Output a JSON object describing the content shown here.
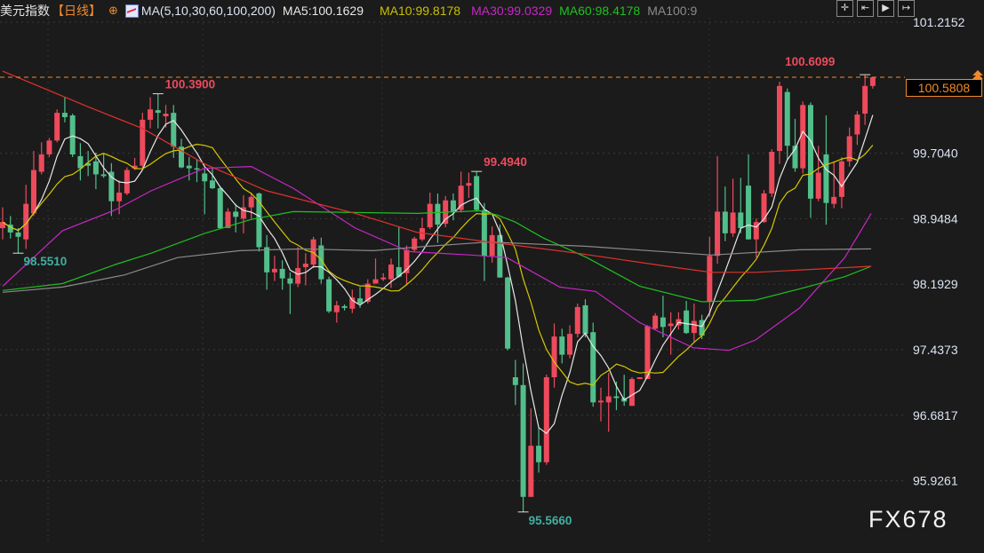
{
  "header": {
    "title": "美元指数",
    "period": "【日线】",
    "zoom_icon": "circle-plus-icon",
    "ma_icon": "line-chart-icon",
    "ma_params": "MA(5,10,30,60,100,200)",
    "ma5": "MA5:100.1629",
    "ma10": "MA10:99.8178",
    "ma30": "MA30:99.0329",
    "ma60": "MA60:98.4178",
    "ma100": "MA100:9"
  },
  "toolbar": [
    {
      "icon": "crosshair-icon",
      "glyph": "✛"
    },
    {
      "icon": "zoom-range-icon",
      "glyph": "⇤"
    },
    {
      "icon": "play-forward-icon",
      "glyph": "▶"
    },
    {
      "icon": "scroll-to-end-icon",
      "glyph": "↦"
    }
  ],
  "current_price": "100.5808",
  "watermark": "FX678",
  "colors": {
    "up": "#ee4a5c",
    "down": "#52bf8b",
    "ma5": "#e8e8e8",
    "ma10": "#d4c800",
    "ma30": "#c727c7",
    "ma60": "#20c020",
    "ma100": "#8a8a8a",
    "ma200": "#e0322c",
    "accent": "#f08a2c",
    "background": "#1b1b1b"
  },
  "chart_data": {
    "type": "candlestick",
    "title": "美元指数",
    "ylim": [
      95.4,
      101.3
    ],
    "yticks": [
      "101.2152",
      "99.7040",
      "98.9484",
      "98.1929",
      "97.4373",
      "96.6817",
      "95.9261"
    ],
    "grid": true,
    "annotations": [
      {
        "label": "100.3900",
        "candle": 21,
        "kind": "high"
      },
      {
        "label": "98.5510",
        "candle": 3,
        "kind": "low"
      },
      {
        "label": "99.4940",
        "candle": 62,
        "kind": "high"
      },
      {
        "label": "95.5660",
        "candle": 68,
        "kind": "low"
      },
      {
        "label": "100.6099",
        "candle": 112,
        "kind": "high"
      }
    ],
    "ohlc": [
      [
        98.84,
        99.08,
        98.71,
        98.91
      ],
      [
        98.88,
        98.98,
        98.72,
        98.79
      ],
      [
        98.79,
        98.84,
        98.551,
        98.74
      ],
      [
        98.71,
        99.34,
        98.6,
        99.12
      ],
      [
        99.01,
        99.73,
        98.98,
        99.51
      ],
      [
        99.49,
        99.83,
        99.46,
        99.69
      ],
      [
        99.69,
        99.88,
        99.66,
        99.85
      ],
      [
        99.85,
        100.21,
        99.83,
        100.17
      ],
      [
        100.17,
        100.35,
        100.06,
        100.12
      ],
      [
        100.14,
        100.16,
        99.66,
        99.69
      ],
      [
        99.67,
        99.82,
        99.39,
        99.53
      ],
      [
        99.59,
        99.73,
        99.44,
        99.56
      ],
      [
        99.61,
        99.71,
        99.29,
        99.46
      ],
      [
        99.46,
        99.7,
        99.42,
        99.44
      ],
      [
        99.49,
        99.59,
        98.98,
        99.15
      ],
      [
        99.15,
        99.39,
        99.0,
        99.25
      ],
      [
        99.24,
        99.54,
        99.22,
        99.51
      ],
      [
        99.53,
        99.65,
        99.51,
        99.56
      ],
      [
        99.56,
        100.17,
        99.53,
        100.09
      ],
      [
        100.09,
        100.35,
        99.99,
        100.21
      ],
      [
        100.2,
        100.39,
        99.99,
        100.17
      ],
      [
        100.13,
        100.26,
        100.0,
        100.16
      ],
      [
        100.17,
        100.26,
        99.65,
        99.78
      ],
      [
        99.78,
        99.87,
        99.53,
        99.54
      ],
      [
        99.56,
        99.66,
        99.39,
        99.53
      ],
      [
        99.53,
        99.63,
        99.37,
        99.52
      ],
      [
        99.47,
        99.54,
        99.0,
        99.38
      ],
      [
        99.39,
        99.54,
        99.29,
        99.3
      ],
      [
        99.3,
        99.32,
        98.83,
        98.84
      ],
      [
        98.84,
        99.07,
        98.84,
        99.03
      ],
      [
        99.03,
        99.12,
        98.79,
        98.97
      ],
      [
        98.95,
        99.22,
        98.78,
        99.08
      ],
      [
        99.08,
        99.25,
        98.95,
        99.2
      ],
      [
        99.24,
        99.25,
        98.57,
        98.62
      ],
      [
        98.62,
        98.76,
        98.13,
        98.33
      ],
      [
        98.33,
        98.52,
        98.23,
        98.37
      ],
      [
        98.37,
        98.47,
        98.13,
        98.26
      ],
      [
        98.26,
        98.33,
        97.85,
        98.2
      ],
      [
        98.2,
        98.62,
        98.16,
        98.38
      ],
      [
        98.39,
        98.55,
        98.18,
        98.43
      ],
      [
        98.42,
        98.74,
        98.38,
        98.71
      ],
      [
        98.64,
        98.73,
        98.2,
        98.25
      ],
      [
        98.25,
        98.28,
        97.86,
        97.88
      ],
      [
        97.87,
        98.0,
        97.75,
        97.95
      ],
      [
        97.94,
        97.96,
        97.89,
        97.92
      ],
      [
        97.91,
        98.13,
        97.86,
        98.04
      ],
      [
        98.03,
        98.16,
        97.92,
        97.97
      ],
      [
        97.99,
        98.25,
        97.97,
        98.2
      ],
      [
        98.2,
        98.49,
        98.2,
        98.25
      ],
      [
        98.25,
        98.32,
        98.23,
        98.27
      ],
      [
        98.25,
        98.49,
        98.15,
        98.42
      ],
      [
        98.39,
        98.85,
        98.27,
        98.28
      ],
      [
        98.32,
        98.64,
        98.18,
        98.59
      ],
      [
        98.59,
        98.74,
        98.57,
        98.72
      ],
      [
        98.71,
        98.96,
        98.69,
        98.84
      ],
      [
        98.85,
        99.25,
        98.83,
        99.12
      ],
      [
        99.12,
        99.24,
        98.67,
        98.88
      ],
      [
        98.89,
        99.21,
        98.85,
        99.16
      ],
      [
        99.16,
        99.24,
        98.93,
        99.03
      ],
      [
        99.05,
        99.49,
        99.02,
        99.33
      ],
      [
        99.33,
        99.48,
        99.19,
        99.36
      ],
      [
        99.44,
        99.494,
        99.03,
        99.05
      ],
      [
        99.05,
        99.13,
        98.23,
        98.52
      ],
      [
        98.52,
        98.86,
        98.44,
        98.76
      ],
      [
        98.76,
        98.88,
        98.27,
        98.27
      ],
      [
        98.27,
        98.28,
        97.43,
        97.45
      ],
      [
        97.12,
        97.32,
        96.8,
        97.03
      ],
      [
        97.03,
        97.28,
        95.566,
        95.74
      ],
      [
        95.74,
        96.76,
        95.74,
        96.33
      ],
      [
        96.33,
        96.54,
        96.02,
        96.14
      ],
      [
        96.14,
        97.15,
        96.11,
        97.12
      ],
      [
        97.12,
        97.74,
        97.0,
        97.59
      ],
      [
        97.59,
        97.68,
        97.28,
        97.38
      ],
      [
        97.38,
        97.72,
        97.34,
        97.62
      ],
      [
        97.62,
        97.97,
        97.58,
        97.93
      ],
      [
        97.95,
        98.02,
        97.58,
        97.62
      ],
      [
        97.64,
        97.75,
        96.78,
        96.83
      ],
      [
        96.83,
        97.0,
        96.61,
        96.85
      ],
      [
        96.83,
        97.17,
        96.49,
        96.9
      ],
      [
        96.9,
        97.07,
        96.74,
        96.88
      ],
      [
        96.88,
        97.15,
        96.79,
        96.84
      ],
      [
        96.79,
        97.12,
        96.79,
        97.1
      ],
      [
        97.1,
        97.12,
        97.1,
        97.12
      ],
      [
        97.1,
        97.72,
        97.1,
        97.71
      ],
      [
        97.68,
        97.86,
        97.67,
        97.83
      ],
      [
        97.81,
        98.06,
        97.58,
        97.7
      ],
      [
        97.71,
        97.87,
        97.38,
        97.74
      ],
      [
        97.72,
        97.87,
        97.67,
        97.79
      ],
      [
        97.89,
        98.0,
        97.62,
        97.63
      ],
      [
        97.63,
        97.97,
        97.53,
        97.77
      ],
      [
        97.78,
        97.84,
        97.56,
        97.6
      ],
      [
        97.99,
        98.74,
        97.82,
        98.52
      ],
      [
        98.52,
        99.67,
        98.43,
        99.03
      ],
      [
        99.03,
        99.32,
        98.69,
        98.78
      ],
      [
        98.78,
        99.41,
        98.74,
        99.02
      ],
      [
        99.02,
        99.42,
        98.78,
        98.84
      ],
      [
        99.33,
        99.69,
        98.71,
        98.71
      ],
      [
        98.71,
        98.95,
        98.5,
        98.91
      ],
      [
        98.91,
        99.28,
        98.9,
        99.24
      ],
      [
        99.24,
        99.75,
        99.2,
        99.72
      ],
      [
        99.73,
        100.53,
        99.58,
        100.48
      ],
      [
        100.41,
        100.45,
        99.63,
        99.79
      ],
      [
        99.79,
        100.1,
        99.49,
        99.53
      ],
      [
        99.53,
        100.3,
        99.47,
        100.26
      ],
      [
        100.26,
        100.29,
        98.96,
        99.18
      ],
      [
        99.18,
        99.79,
        99.15,
        99.48
      ],
      [
        99.69,
        100.14,
        98.88,
        99.13
      ],
      [
        99.12,
        99.61,
        99.07,
        99.2
      ],
      [
        99.2,
        99.66,
        99.07,
        99.61
      ],
      [
        99.61,
        100.0,
        99.55,
        99.9
      ],
      [
        99.92,
        100.19,
        99.8,
        100.15
      ],
      [
        100.16,
        100.6099,
        100.03,
        100.48
      ],
      [
        100.48,
        100.57,
        100.45,
        100.5808
      ]
    ],
    "moving_averages": [
      {
        "name": "MA5",
        "period": 5
      },
      {
        "name": "MA10",
        "period": 10
      },
      {
        "name": "MA30",
        "points": [
          [
            1,
            98.17
          ],
          [
            8.7,
            98.81
          ],
          [
            15.5,
            99.05
          ],
          [
            20.1,
            99.27
          ],
          [
            27,
            99.53
          ],
          [
            33,
            99.55
          ],
          [
            38.4,
            99.3
          ],
          [
            46.4,
            98.84
          ],
          [
            53.3,
            98.57
          ],
          [
            61.3,
            98.53
          ],
          [
            65.9,
            98.5
          ],
          [
            69.3,
            98.33
          ],
          [
            72.7,
            98.16
          ],
          [
            77.3,
            98.11
          ],
          [
            83,
            97.75
          ],
          [
            89.9,
            97.46
          ],
          [
            94.5,
            97.43
          ],
          [
            97.9,
            97.55
          ],
          [
            103.6,
            97.92
          ],
          [
            109.4,
            98.5
          ],
          [
            112.8,
            99.01
          ]
        ]
      },
      {
        "name": "MA60",
        "points": [
          [
            1,
            98.12
          ],
          [
            8.7,
            98.2
          ],
          [
            15.5,
            98.42
          ],
          [
            20.1,
            98.55
          ],
          [
            27,
            98.78
          ],
          [
            33,
            98.94
          ],
          [
            38.4,
            99.03
          ],
          [
            54.4,
            99.01
          ],
          [
            62.4,
            99.04
          ],
          [
            64.7,
            98.99
          ],
          [
            67,
            98.91
          ],
          [
            70.5,
            98.73
          ],
          [
            76.2,
            98.5
          ],
          [
            83,
            98.17
          ],
          [
            91,
            97.99
          ],
          [
            97.9,
            98.01
          ],
          [
            103.6,
            98.14
          ],
          [
            109.4,
            98.28
          ],
          [
            112.8,
            98.4
          ]
        ]
      },
      {
        "name": "MA100",
        "points": [
          [
            1,
            98.1
          ],
          [
            8.7,
            98.16
          ],
          [
            16.7,
            98.3
          ],
          [
            23.5,
            98.5
          ],
          [
            31.5,
            98.58
          ],
          [
            39.6,
            98.6
          ],
          [
            48.7,
            98.58
          ],
          [
            55.6,
            98.63
          ],
          [
            63.6,
            98.68
          ],
          [
            76.2,
            98.63
          ],
          [
            92.2,
            98.53
          ],
          [
            103.6,
            98.59
          ],
          [
            112.8,
            98.6
          ]
        ]
      },
      {
        "name": "MA200",
        "points": [
          [
            1,
            100.65
          ],
          [
            12,
            100.24
          ],
          [
            19,
            99.99
          ],
          [
            27,
            99.58
          ],
          [
            35,
            99.27
          ],
          [
            46.4,
            99.01
          ],
          [
            54.4,
            98.79
          ],
          [
            63.6,
            98.68
          ],
          [
            75,
            98.55
          ],
          [
            86.5,
            98.4
          ],
          [
            92.2,
            98.33
          ],
          [
            97.9,
            98.33
          ],
          [
            112.8,
            98.4
          ]
        ]
      }
    ]
  }
}
